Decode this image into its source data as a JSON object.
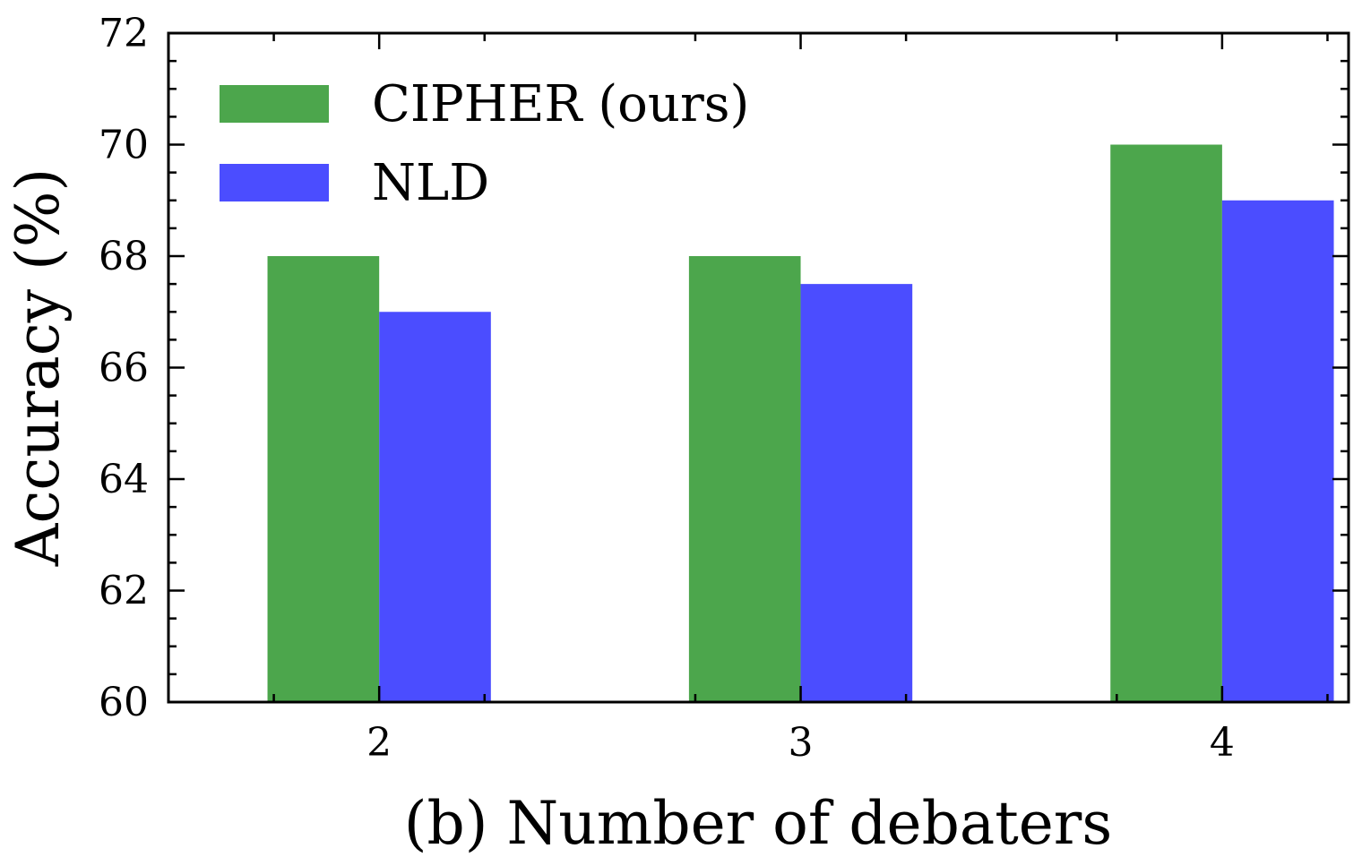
{
  "chart_data": {
    "type": "bar",
    "title": "",
    "xlabel": "(b) Number of debaters",
    "ylabel": "Accuracy (%)",
    "categories": [
      "2",
      "3",
      "4"
    ],
    "series": [
      {
        "name": "CIPHER (ours)",
        "color": "#4ca64c",
        "values": [
          68,
          68,
          70
        ]
      },
      {
        "name": "NLD",
        "color": "#4b4dff",
        "values": [
          67,
          67.5,
          69
        ]
      }
    ],
    "ylim": [
      60,
      72
    ],
    "yticks": [
      60,
      62,
      64,
      66,
      68,
      70,
      72
    ],
    "yminor_step": 0.5,
    "xlim": [
      1.5,
      4.3
    ],
    "xminor_ticks": [
      1.75,
      2.25,
      2.75,
      3.25,
      3.75,
      4.25
    ],
    "bar_width": 0.265,
    "legend_position": "top-left",
    "grid": false
  }
}
